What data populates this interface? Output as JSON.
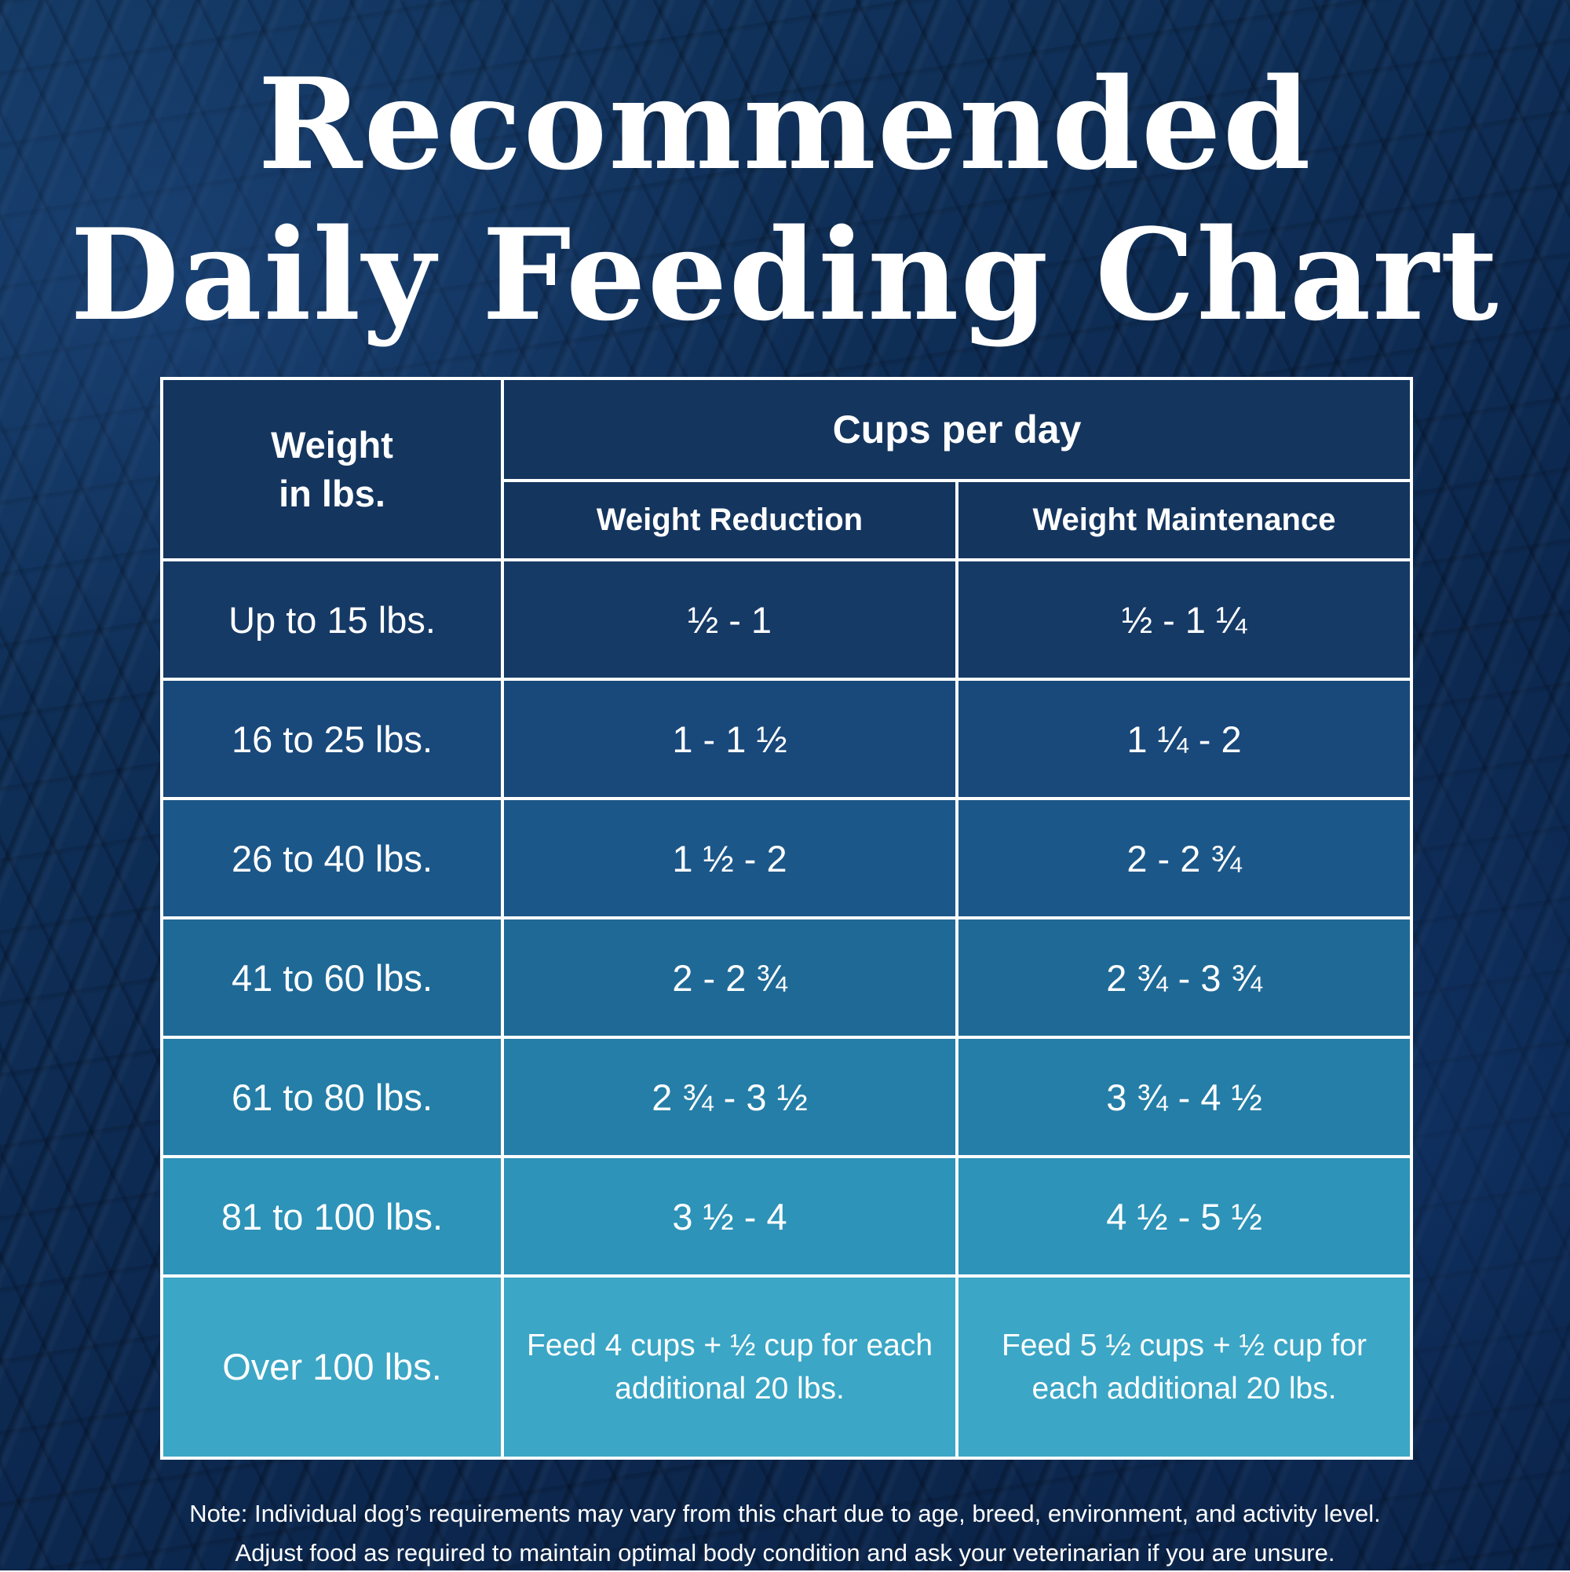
{
  "title": {
    "line1": "Recommended",
    "line2": "Daily Feeding Chart"
  },
  "table": {
    "weight_header_line1": "Weight",
    "weight_header_line2": "in lbs.",
    "group_header": "Cups per day",
    "col_reduction": "Weight Reduction",
    "col_maintenance": "Weight Maintenance",
    "rows": [
      {
        "weight": "Up to 15 lbs.",
        "reduction": "½  - 1",
        "maintenance": "½  - 1 ¼"
      },
      {
        "weight": "16 to 25 lbs.",
        "reduction": "1  - 1 ½",
        "maintenance": "1 ¼  - 2"
      },
      {
        "weight": "26 to 40 lbs.",
        "reduction": "1 ½  - 2",
        "maintenance": "2 - 2 ¾"
      },
      {
        "weight": "41 to 60 lbs.",
        "reduction": "2 - 2 ¾",
        "maintenance": "2 ¾ - 3 ¾"
      },
      {
        "weight": "61 to 80 lbs.",
        "reduction": "2 ¾  - 3 ½",
        "maintenance": "3 ¾  - 4 ½"
      },
      {
        "weight": "81 to 100 lbs.",
        "reduction": "3 ½ - 4",
        "maintenance": "4 ½ - 5 ½"
      },
      {
        "weight": "Over 100 lbs.",
        "reduction": "Feed 4 cups + ½ cup for each additional 20 lbs.",
        "maintenance": "Feed 5 ½ cups + ½ cup for each additional 20 lbs."
      }
    ]
  },
  "note": {
    "line1": "Note: Individual dog’s requirements may vary from this chart due to age, breed, environment, and activity level.",
    "line2": "Adjust food as required to maintain optimal body condition and ask your veterinarian if you are unsure."
  },
  "colors": {
    "background": "#0e2b53",
    "border": "#ffffff",
    "text": "#ffffff",
    "header_bg": "#14355e",
    "row_backgrounds": [
      "#163a66",
      "#19487a",
      "#1c5789",
      "#1f6997",
      "#247ea7",
      "#2d93b8",
      "#3ba6c6"
    ]
  },
  "chart_data": {
    "type": "table",
    "title": "Recommended Daily Feeding Chart",
    "columns": [
      "Weight in lbs.",
      "Weight Reduction (cups per day)",
      "Weight Maintenance (cups per day)"
    ],
    "rows": [
      [
        "Up to 15 lbs.",
        "½ - 1",
        "½ - 1 ¼"
      ],
      [
        "16 to 25 lbs.",
        "1 - 1 ½",
        "1 ¼ - 2"
      ],
      [
        "26 to 40 lbs.",
        "1 ½ - 2",
        "2 - 2 ¾"
      ],
      [
        "41 to 60 lbs.",
        "2 - 2 ¾",
        "2 ¾ - 3 ¾"
      ],
      [
        "61 to 80 lbs.",
        "2 ¾ - 3 ½",
        "3 ¾ - 4 ½"
      ],
      [
        "81 to 100 lbs.",
        "3 ½ - 4",
        "4 ½ - 5 ½"
      ],
      [
        "Over 100 lbs.",
        "Feed 4 cups + ½ cup for each additional 20 lbs.",
        "Feed 5 ½ cups + ½ cup for each additional 20 lbs."
      ]
    ],
    "note": "Note: Individual dog’s requirements may vary from this chart due to age, breed, environment, and activity level. Adjust food as required to maintain optimal body condition and ask your veterinarian if you are unsure."
  }
}
